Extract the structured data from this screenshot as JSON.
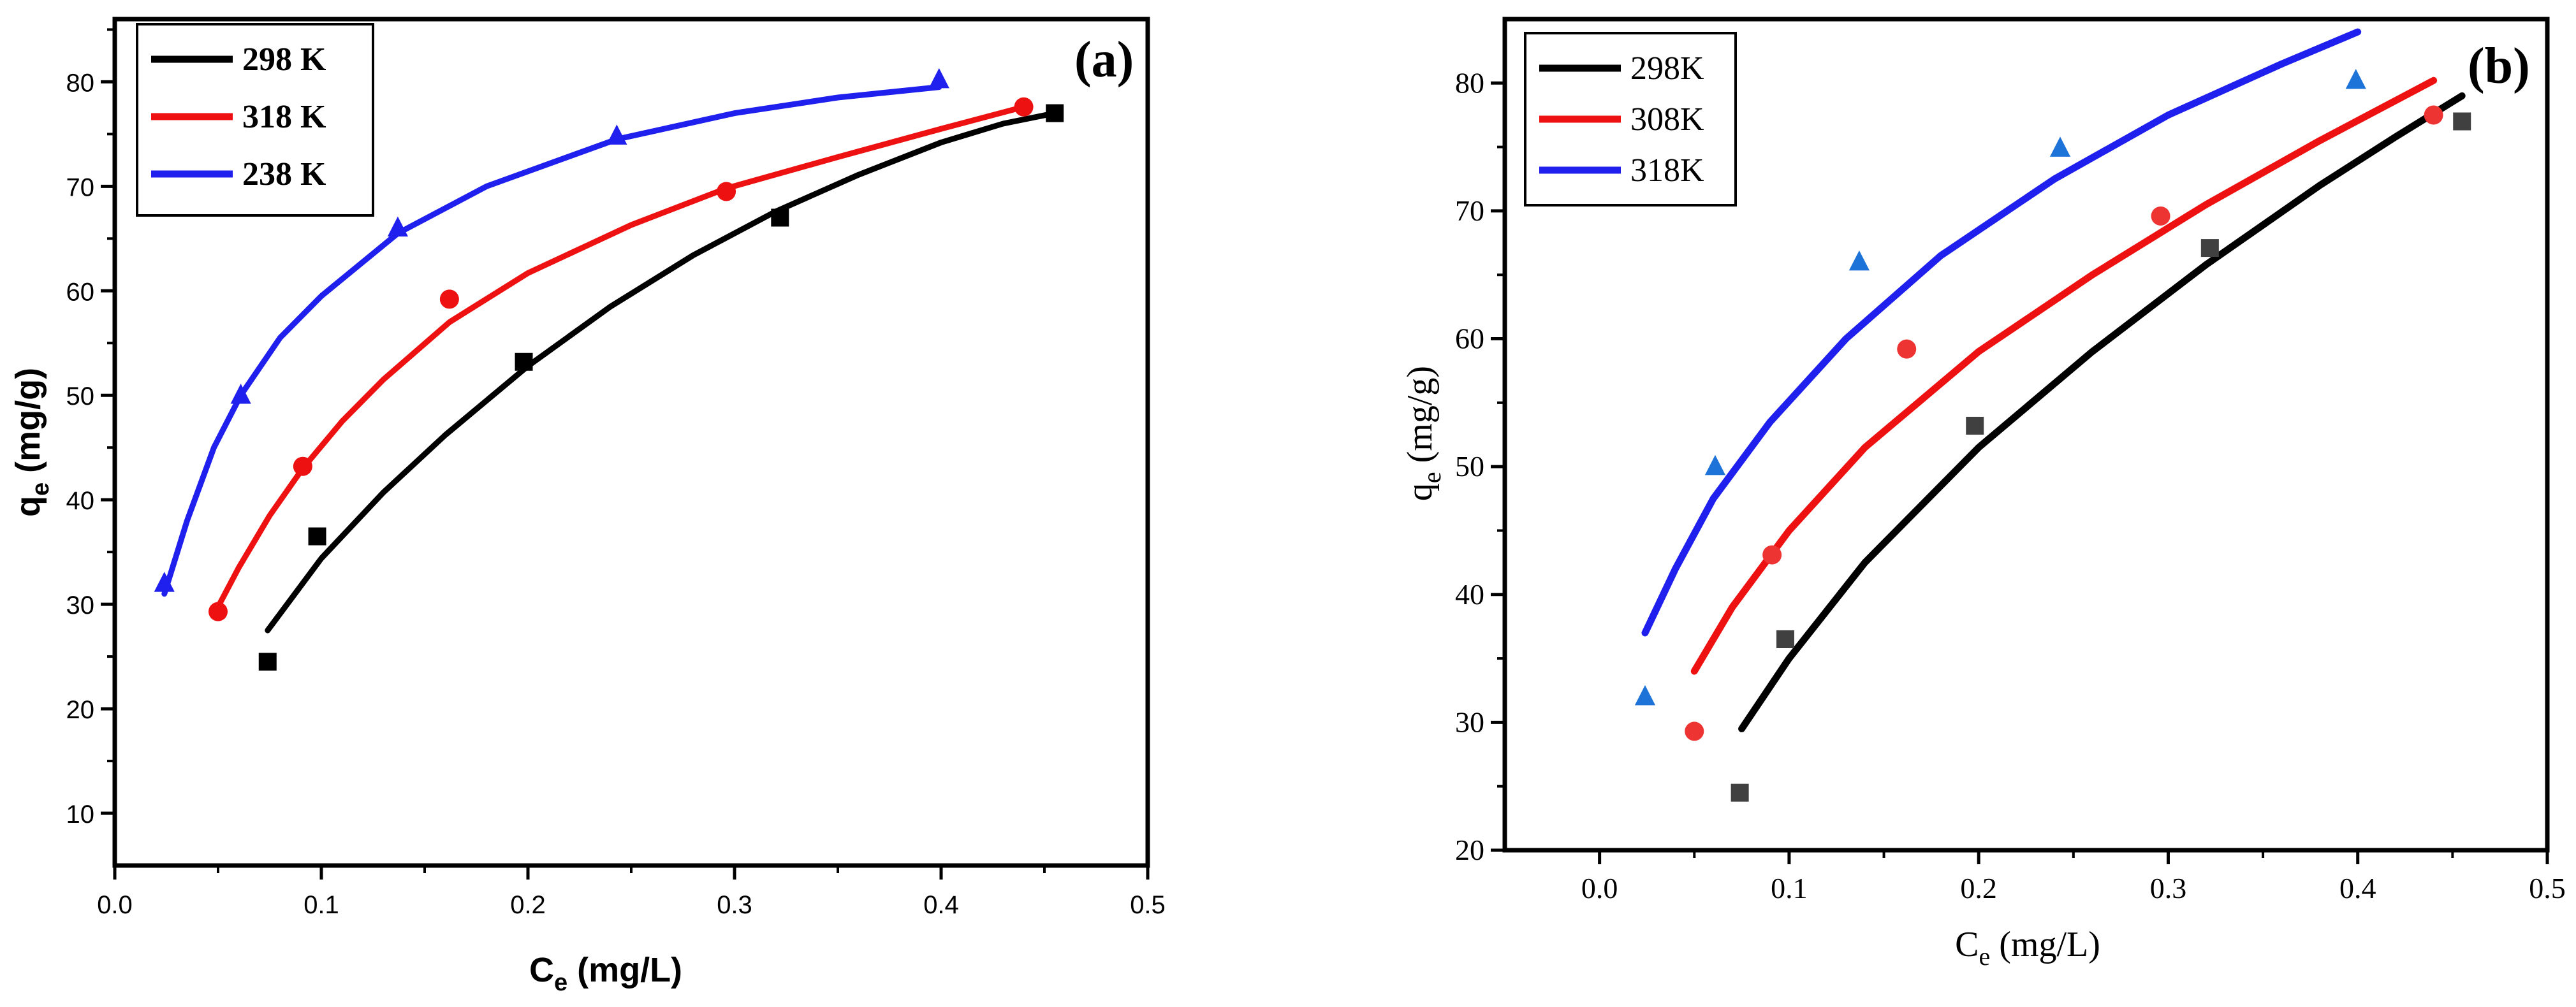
{
  "colors": {
    "black": "#000000",
    "red": "#ee1111",
    "blue": "#1f1fee",
    "marker_gray": "#404040",
    "marker_red": "#ee3333",
    "marker_blue": "#1e73d8"
  },
  "chart_data": [
    {
      "type": "scatter",
      "panel_label": "(a)",
      "xlabel": {
        "main": "C",
        "sub": "e",
        "unit": " (mg/L)"
      },
      "ylabel": {
        "main": "q",
        "sub": "e",
        "unit": " (mg/g)"
      },
      "xlim": [
        0.0,
        0.5
      ],
      "ylim": [
        5,
        86
      ],
      "xticks": [
        0.0,
        0.1,
        0.2,
        0.3,
        0.4,
        0.5
      ],
      "xtick_labels": [
        "0.0",
        "0.1",
        "0.2",
        "0.3",
        "0.4",
        "0.5"
      ],
      "yticks": [
        10,
        20,
        30,
        40,
        50,
        60,
        70,
        80
      ],
      "ytick_labels": [
        "10",
        "20",
        "30",
        "40",
        "50",
        "60",
        "70",
        "80"
      ],
      "legend": {
        "position": "top-left",
        "entries": [
          "298 K",
          "318 K",
          "238 K"
        ]
      },
      "series": [
        {
          "name": "298 K",
          "color": "#000000",
          "marker": "square",
          "x": [
            0.074,
            0.098,
            0.198,
            0.322,
            0.455
          ],
          "y": [
            24.5,
            36.5,
            53.2,
            67.0,
            77.0
          ],
          "fit_x": [
            0.074,
            0.1,
            0.13,
            0.16,
            0.2,
            0.24,
            0.28,
            0.32,
            0.36,
            0.4,
            0.43,
            0.455
          ],
          "fit_y": [
            27.5,
            34.4,
            40.7,
            46.2,
            52.8,
            58.5,
            63.4,
            67.6,
            71.1,
            74.2,
            76.0,
            77.0
          ]
        },
        {
          "name": "318 K",
          "color": "#ee1111",
          "marker": "circle",
          "x": [
            0.05,
            0.091,
            0.162,
            0.296,
            0.44
          ],
          "y": [
            29.3,
            43.2,
            59.2,
            69.5,
            77.6
          ],
          "fit_x": [
            0.048,
            0.06,
            0.075,
            0.091,
            0.11,
            0.13,
            0.162,
            0.2,
            0.25,
            0.296,
            0.35,
            0.4,
            0.44
          ],
          "fit_y": [
            29.0,
            33.5,
            38.5,
            43.0,
            47.5,
            51.5,
            57.0,
            61.7,
            66.3,
            69.8,
            72.8,
            75.5,
            77.6
          ]
        },
        {
          "name": "238 K",
          "color": "#1f1fee",
          "marker": "triangle",
          "x": [
            0.024,
            0.061,
            0.137,
            0.243,
            0.399
          ],
          "y": [
            32.0,
            50.0,
            66.0,
            74.8,
            80.2
          ],
          "fit_x": [
            0.024,
            0.035,
            0.048,
            0.061,
            0.08,
            0.1,
            0.137,
            0.18,
            0.243,
            0.3,
            0.35,
            0.399
          ],
          "fit_y": [
            31.0,
            38.0,
            45.0,
            50.0,
            55.5,
            59.5,
            65.5,
            70.0,
            74.5,
            77.0,
            78.5,
            79.5
          ]
        }
      ]
    },
    {
      "type": "scatter",
      "panel_label": "(b)",
      "xlabel": {
        "main": "C",
        "sub": "e",
        "unit": " (mg/L)"
      },
      "ylabel": {
        "main": "q",
        "sub": "e",
        "unit": " (mg/g)"
      },
      "xlim": [
        -0.05,
        0.5
      ],
      "ylim": [
        20,
        85
      ],
      "xticks": [
        0.0,
        0.1,
        0.2,
        0.3,
        0.4,
        0.5
      ],
      "xtick_labels": [
        "0.0",
        "0.1",
        "0.2",
        "0.3",
        "0.4",
        "0.5"
      ],
      "yticks": [
        20,
        30,
        40,
        50,
        60,
        70,
        80
      ],
      "ytick_labels": [
        "20",
        "30",
        "40",
        "50",
        "60",
        "70",
        "80"
      ],
      "legend": {
        "position": "top-left",
        "entries": [
          "298K",
          "308K",
          "318K"
        ]
      },
      "series": [
        {
          "name": "298K",
          "color": "#000000",
          "marker": "square",
          "x": [
            0.074,
            0.098,
            0.198,
            0.322,
            0.455
          ],
          "y": [
            24.5,
            36.5,
            53.2,
            67.1,
            77.0
          ],
          "fit_x": [
            0.075,
            0.1,
            0.14,
            0.2,
            0.26,
            0.32,
            0.38,
            0.42,
            0.455
          ],
          "fit_y": [
            29.5,
            35.0,
            42.5,
            51.5,
            59.0,
            65.8,
            72.0,
            75.8,
            79.0
          ]
        },
        {
          "name": "308K",
          "color": "#ee1111",
          "marker": "circle",
          "x": [
            0.05,
            0.091,
            0.162,
            0.296,
            0.44
          ],
          "y": [
            29.3,
            43.1,
            59.2,
            69.6,
            77.5
          ],
          "fit_x": [
            0.05,
            0.07,
            0.1,
            0.14,
            0.2,
            0.26,
            0.32,
            0.38,
            0.44
          ],
          "fit_y": [
            34.0,
            39.0,
            45.0,
            51.5,
            59.0,
            65.0,
            70.5,
            75.5,
            80.2
          ]
        },
        {
          "name": "318K",
          "color": "#1f1fee",
          "marker": "triangle",
          "x": [
            0.024,
            0.061,
            0.137,
            0.243,
            0.399
          ],
          "y": [
            32.0,
            50.0,
            66.0,
            74.9,
            80.2
          ],
          "fit_x": [
            0.024,
            0.04,
            0.06,
            0.09,
            0.13,
            0.18,
            0.24,
            0.3,
            0.36,
            0.4
          ],
          "fit_y": [
            37.0,
            42.0,
            47.5,
            53.5,
            60.0,
            66.5,
            72.5,
            77.5,
            81.5,
            84.0
          ]
        }
      ]
    }
  ]
}
